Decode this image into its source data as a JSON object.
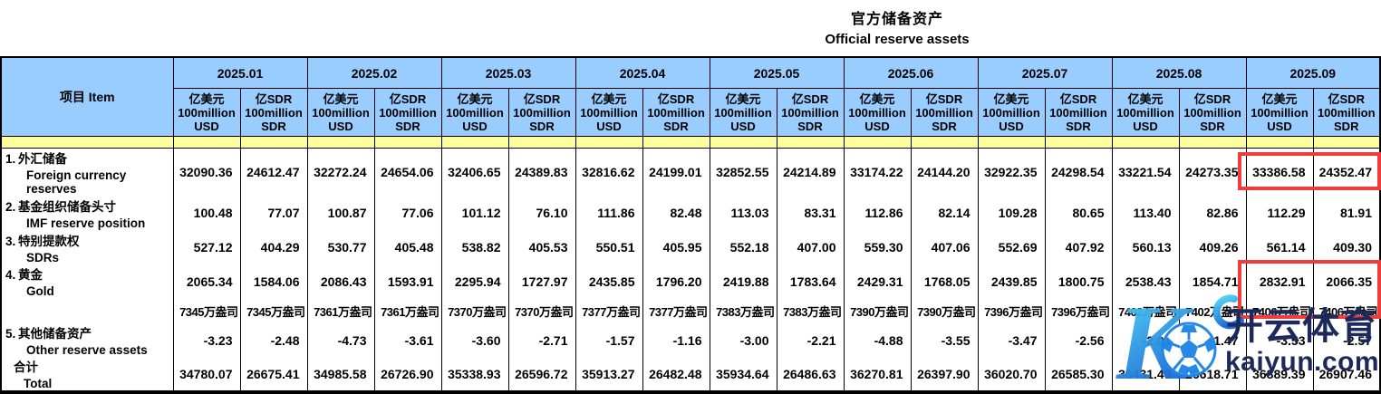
{
  "title": {
    "zh": "官方储备资产",
    "en": "Official reserve assets"
  },
  "table": {
    "item_header": "项目 Item",
    "months": [
      "2025.01",
      "2025.02",
      "2025.03",
      "2025.04",
      "2025.05",
      "2025.06",
      "2025.07",
      "2025.08",
      "2025.09"
    ],
    "unit_usd": [
      "亿美元",
      "100million",
      "USD"
    ],
    "unit_sdr": [
      "亿SDR",
      "100million",
      "SDR"
    ],
    "rows": [
      {
        "num": "1.",
        "zh": "外汇储备",
        "en": "Foreign currency reserves",
        "values": [
          "32090.36",
          "24612.47",
          "32272.24",
          "24654.06",
          "32406.65",
          "24389.83",
          "32816.62",
          "24199.01",
          "32852.55",
          "24214.89",
          "33174.22",
          "24144.20",
          "32922.35",
          "24298.54",
          "33221.54",
          "24273.35",
          "33386.58",
          "24352.47"
        ]
      },
      {
        "num": "2.",
        "zh": "基金组织储备头寸",
        "en": "IMF reserve position",
        "values": [
          "100.48",
          "77.07",
          "100.87",
          "77.06",
          "101.12",
          "76.10",
          "111.86",
          "82.48",
          "113.03",
          "83.31",
          "112.86",
          "82.14",
          "109.28",
          "80.65",
          "113.40",
          "82.86",
          "112.29",
          "81.91"
        ]
      },
      {
        "num": "3.",
        "zh": "特别提款权",
        "en": "SDRs",
        "values": [
          "527.12",
          "404.29",
          "530.77",
          "405.48",
          "538.82",
          "405.53",
          "550.51",
          "405.95",
          "552.18",
          "407.00",
          "559.30",
          "407.06",
          "552.69",
          "407.92",
          "560.13",
          "409.26",
          "561.14",
          "409.30"
        ]
      },
      {
        "num": "4.",
        "zh": "黄金",
        "en": "Gold",
        "values": [
          "2065.34",
          "1584.06",
          "2086.43",
          "1593.91",
          "2295.94",
          "1727.97",
          "2435.85",
          "1796.20",
          "2419.88",
          "1783.64",
          "2429.31",
          "1768.05",
          "2439.85",
          "1800.75",
          "2538.43",
          "1854.71",
          "2832.91",
          "2066.35"
        ]
      },
      {
        "num": "",
        "zh": "",
        "en": "",
        "values": [
          "7345万盎司",
          "7345万盎司",
          "7361万盎司",
          "7361万盎司",
          "7370万盎司",
          "7370万盎司",
          "7377万盎司",
          "7377万盎司",
          "7383万盎司",
          "7383万盎司",
          "7390万盎司",
          "7390万盎司",
          "7396万盎司",
          "7396万盎司",
          "7402万盎司",
          "7402万盎司",
          "7406万盎司",
          "7406万盎司"
        ]
      },
      {
        "num": "5.",
        "zh": "其他储备资产",
        "en": "Other reserve assets",
        "values": [
          "-3.23",
          "-2.48",
          "-4.73",
          "-3.61",
          "-3.60",
          "-2.71",
          "-1.57",
          "-1.16",
          "-3.00",
          "-2.21",
          "-4.88",
          "-3.55",
          "-3.47",
          "-2.56",
          "-2.01",
          "-1.47",
          "-3.53",
          "-2.57"
        ]
      },
      {
        "num": "",
        "zh": "合计",
        "en": "Total",
        "values": [
          "34780.07",
          "26675.41",
          "34985.58",
          "26726.90",
          "35338.93",
          "26596.72",
          "35913.27",
          "26482.48",
          "35934.64",
          "26486.63",
          "36270.81",
          "26397.90",
          "36020.70",
          "26585.30",
          "36431.49",
          "26618.71",
          "36889.39",
          "26907.46"
        ]
      }
    ]
  },
  "highlight_color": "#f23b3b",
  "header_color": "#99ccff",
  "band_color": "#ffff99",
  "watermark": {
    "logo_letter": "K",
    "football_icon": "football-icon",
    "brand_zh": "开云体育",
    "brand_domain": "kaiyun.com"
  }
}
